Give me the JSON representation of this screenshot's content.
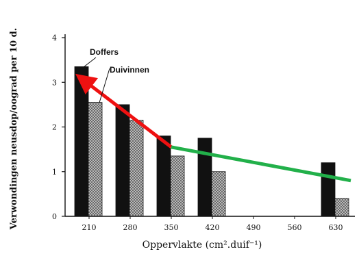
{
  "chart_data": {
    "type": "bar",
    "xlabel": "Oppervlakte (cm².duif⁻¹)",
    "ylabel": "Verwondingen neusdop/oograd per 10 d.",
    "ylim": [
      0,
      4
    ],
    "yticks": [
      "0",
      "1",
      "2",
      "3",
      "4"
    ],
    "categories": [
      "210",
      "280",
      "350",
      "420",
      "490",
      "560",
      "630"
    ],
    "series": [
      {
        "name": "Doffers",
        "values": [
          3.35,
          2.5,
          1.8,
          1.75,
          null,
          null,
          1.2
        ],
        "color": "#111111"
      },
      {
        "name": "Duivinnen",
        "values": [
          2.55,
          2.15,
          1.35,
          1.0,
          null,
          null,
          0.4
        ],
        "color": "#9a9a9a"
      }
    ],
    "annotations": {
      "red_arrow": {
        "color": "#ee1111",
        "from": [
          "350",
          1.55
        ],
        "to": [
          "210",
          3.05
        ]
      },
      "green_line": {
        "color": "#22b04a",
        "from": [
          "350",
          1.55
        ],
        "to": [
          "630",
          0.8
        ]
      }
    },
    "legend": [
      "Doffers",
      "Duivinnen"
    ]
  }
}
